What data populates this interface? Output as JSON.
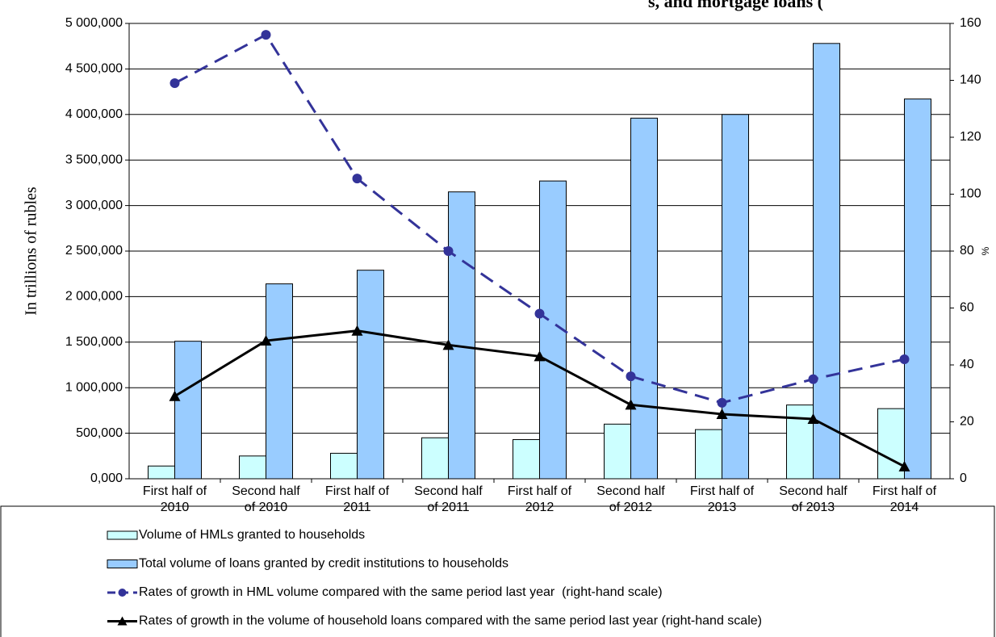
{
  "chart_data": {
    "type": "bar_line",
    "title": "s, and mortgage loans (",
    "y_label": "In trillions of rubles",
    "y2_label": "%",
    "categories": [
      "First half of\n2010",
      "Second half\nof 2010",
      "First half of\n2011",
      "Second half\nof 2011",
      "First half of\n2012",
      "Second half\nof 2012",
      "First half of\n2013",
      "Second half\nof 2013",
      "First half of\n2014"
    ],
    "ylim": [
      0,
      5000000
    ],
    "yticks": [
      {
        "value": 0,
        "label": "0,000"
      },
      {
        "value": 500000,
        "label": "500,000"
      },
      {
        "value": 1000000,
        "label": "1 000,000"
      },
      {
        "value": 1500000,
        "label": "1 500,000"
      },
      {
        "value": 2000000,
        "label": "2 000,000"
      },
      {
        "value": 2500000,
        "label": "2 500,000"
      },
      {
        "value": 3000000,
        "label": "3 000,000"
      },
      {
        "value": 3500000,
        "label": "3 500,000"
      },
      {
        "value": 4000000,
        "label": "4 000,000"
      },
      {
        "value": 4500000,
        "label": "4 500,000"
      },
      {
        "value": 5000000,
        "label": "5 000,000"
      }
    ],
    "y2lim": [
      0,
      160
    ],
    "y2ticks": [
      0,
      20,
      40,
      60,
      80,
      100,
      120,
      140,
      160
    ],
    "grid": true,
    "series": [
      {
        "name": "Volume of HMLs granted to households",
        "type": "bar",
        "color": "#ccffff",
        "values": [
          140000,
          250000,
          280000,
          450000,
          430000,
          600000,
          540000,
          810000,
          770000
        ]
      },
      {
        "name": "Total volume of loans granted by credit institutions to households",
        "type": "bar",
        "color": "#99ccff",
        "values": [
          1510000,
          2140000,
          2290000,
          3150000,
          3270000,
          3960000,
          4000000,
          4780000,
          4170000
        ]
      },
      {
        "name": "Rates of growth in HML volume compared with the same period last year  (right-hand scale)",
        "type": "line",
        "axis": "y2",
        "color": "#333399",
        "dashed": true,
        "marker": "circle",
        "values": [
          139,
          156,
          105.5,
          80,
          58,
          36,
          26.7,
          35,
          42
        ]
      },
      {
        "name": "Rates of growth in the volume of household loans compared with the same period last year (right-hand scale)",
        "type": "line",
        "axis": "y2",
        "color": "#000000",
        "dashed": false,
        "marker": "triangle",
        "values": [
          29,
          48.5,
          52,
          47,
          43,
          26,
          22.7,
          21,
          4.3
        ]
      }
    ]
  }
}
